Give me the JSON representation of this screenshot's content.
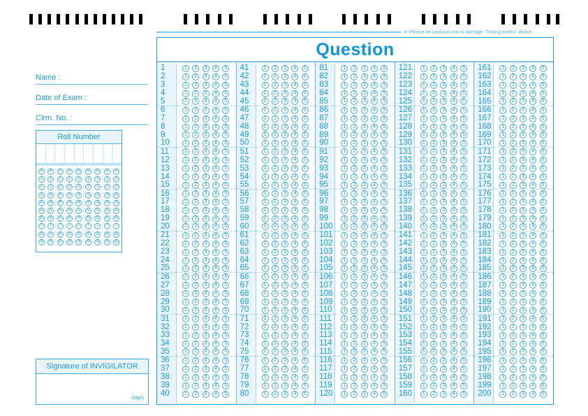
{
  "caution_note": "※ Please be cautious not to damage \"Timing marks\" above.",
  "fields": {
    "name": "Name  :",
    "date_of_exam": "Date of Exam  :",
    "clrm_no": "Clrm. No.  :"
  },
  "roll_number": {
    "title": "Roll Number",
    "digit_columns": 9,
    "digits": [
      "0",
      "1",
      "2",
      "3",
      "4",
      "5",
      "6",
      "7",
      "8",
      "9"
    ]
  },
  "signature": {
    "title": "Signature of INVIGILATOR",
    "sign_hint": "(sign)"
  },
  "question": {
    "title": "Question",
    "options": [
      "1",
      "2",
      "3",
      "4",
      "5"
    ],
    "columns": [
      {
        "start": 1,
        "end": 40
      },
      {
        "start": 41,
        "end": 80
      },
      {
        "start": 81,
        "end": 120
      },
      {
        "start": 121,
        "end": 160
      },
      {
        "start": 161,
        "end": 200
      }
    ]
  },
  "colors": {
    "accent": "#1a9ad9",
    "tint": "#e8f5fc",
    "timing_mark": "#000000"
  }
}
